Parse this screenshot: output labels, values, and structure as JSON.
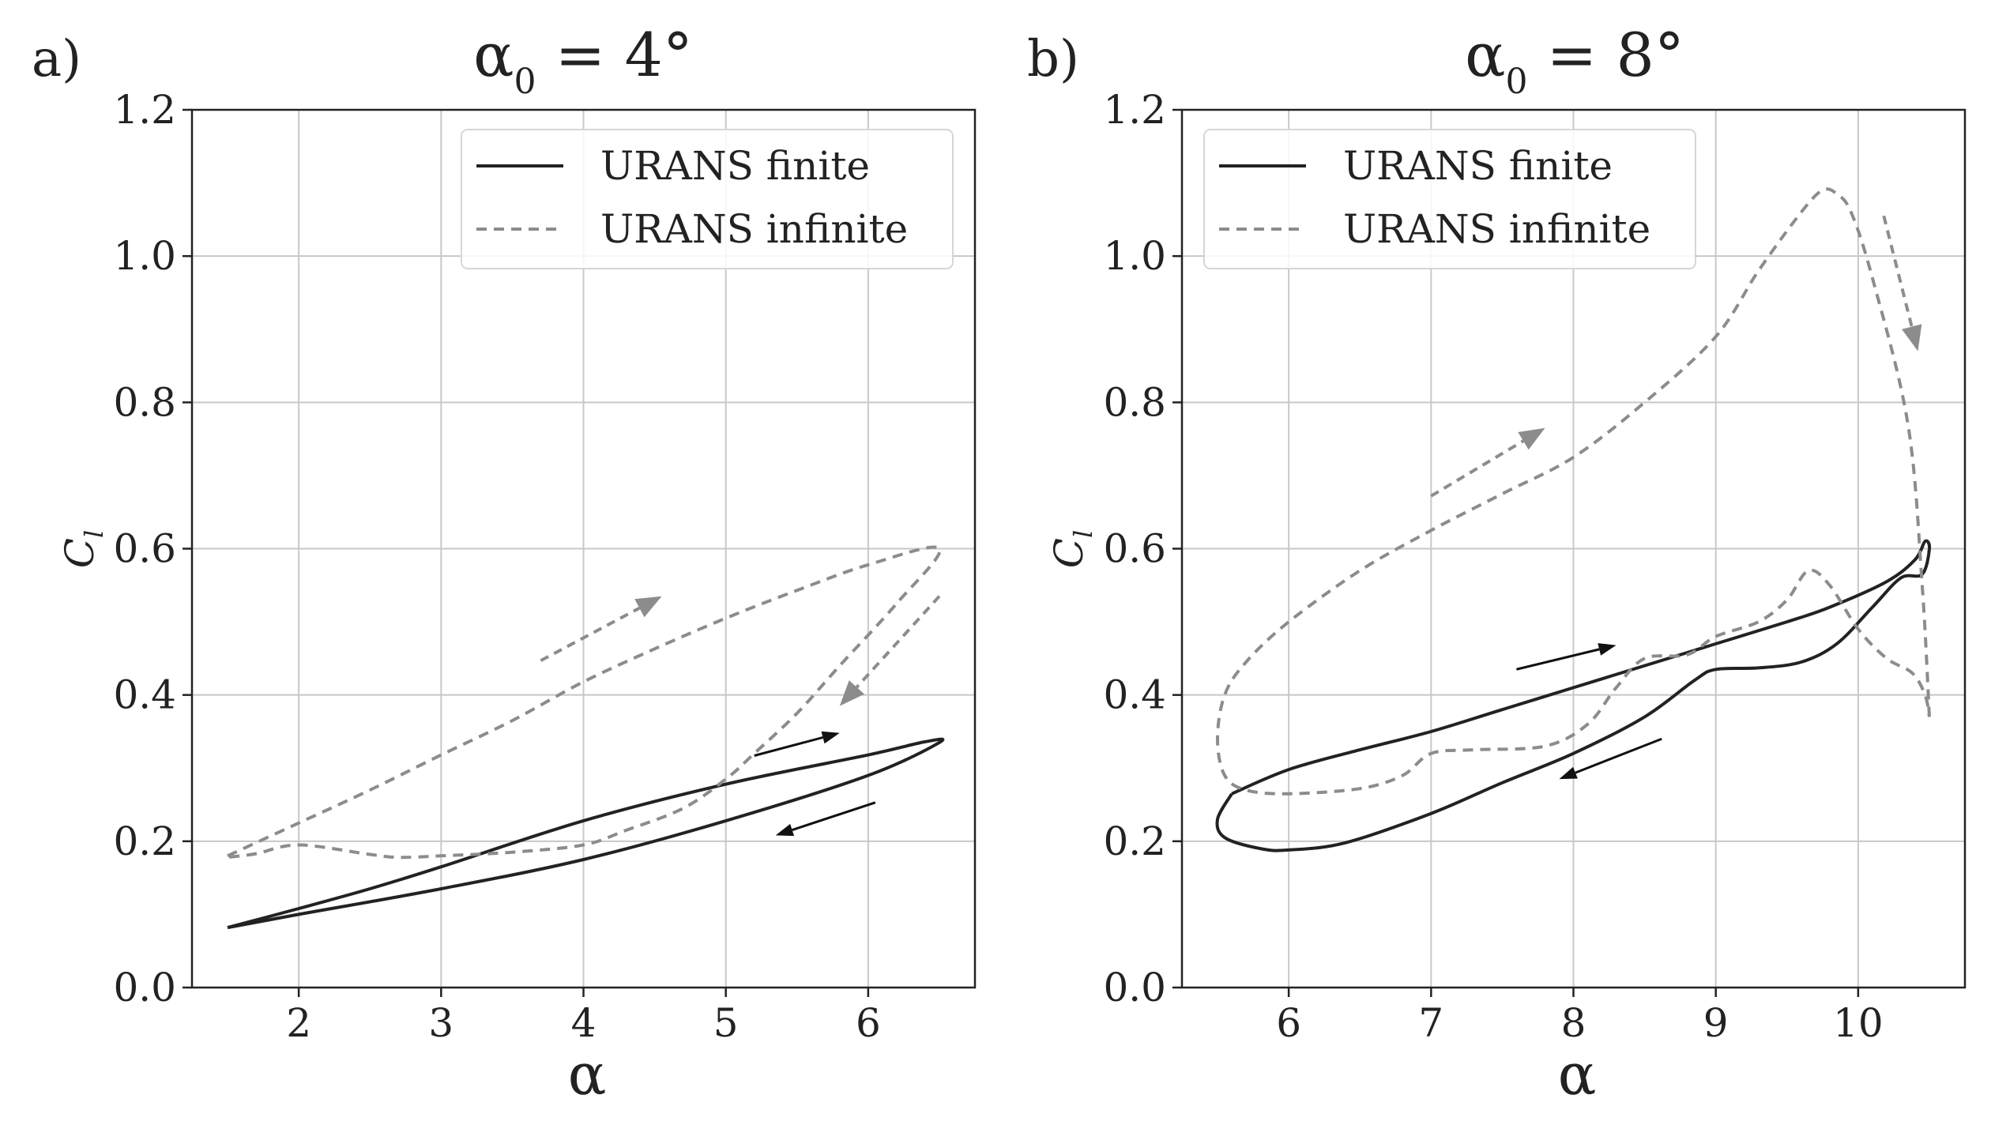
{
  "panels": [
    {
      "label": "a)",
      "title": {
        "symbol": "α",
        "subscript": "0",
        "value": " = 4°"
      },
      "xlabel": "α",
      "ylabel": {
        "main": "C",
        "sub": "l"
      }
    },
    {
      "label": "b)",
      "title": {
        "symbol": "α",
        "subscript": "0",
        "value": " = 8°"
      },
      "xlabel": "α",
      "ylabel": {
        "main": "C",
        "sub": "l"
      }
    }
  ],
  "colors": {
    "finite": "#222222",
    "infinite": "#8c8c8c",
    "grid": "#c8c8c8",
    "arrow_finite": "#111111",
    "arrow_infinite": "#8c8c8c"
  },
  "chart_data": [
    {
      "type": "line",
      "title": "α0 = 4°",
      "xlabel": "α",
      "ylabel": "Cl",
      "xlim": [
        1.25,
        6.75
      ],
      "ylim": [
        0,
        1.2
      ],
      "xticks": [
        2,
        3,
        4,
        5,
        6
      ],
      "xtick_labels": [
        "2",
        "3",
        "4",
        "5",
        "6"
      ],
      "yticks": [
        0,
        0.2,
        0.4,
        0.6,
        0.8,
        1.0,
        1.2
      ],
      "ytick_labels": [
        "0.0",
        "0.2",
        "0.4",
        "0.6",
        "0.8",
        "1.0",
        "1.2"
      ],
      "grid": true,
      "legend": "top-right",
      "series": [
        {
          "name": "URANS finite",
          "style": "solid",
          "x": [
            1.5,
            2.0,
            3.0,
            4.0,
            5.0,
            6.0,
            6.5,
            6.4,
            6.0,
            5.0,
            4.0,
            3.0,
            2.5,
            2.0,
            1.5
          ],
          "y": [
            0.082,
            0.1,
            0.135,
            0.175,
            0.228,
            0.29,
            0.335,
            0.336,
            0.318,
            0.278,
            0.228,
            0.165,
            0.135,
            0.108,
            0.082
          ]
        },
        {
          "name": "URANS infinite",
          "style": "dashed",
          "x": [
            1.5,
            2.0,
            2.5,
            3.0,
            3.5,
            4.0,
            4.5,
            5.0,
            5.5,
            6.0,
            6.5,
            6.2,
            5.8,
            5.5,
            5.2,
            5.0,
            4.7,
            4.3,
            4.0,
            3.5,
            3.0,
            2.7,
            2.5,
            2.0,
            1.7,
            1.5
          ],
          "y": [
            0.18,
            0.225,
            0.27,
            0.318,
            0.365,
            0.418,
            0.463,
            0.505,
            0.543,
            0.578,
            0.6,
            0.525,
            0.44,
            0.375,
            0.32,
            0.285,
            0.245,
            0.215,
            0.195,
            0.185,
            0.18,
            0.178,
            0.182,
            0.195,
            0.183,
            0.178
          ]
        }
      ],
      "arrows": [
        {
          "series": "URANS finite",
          "from": [
            5.2,
            0.317
          ],
          "to": [
            5.8,
            0.348
          ]
        },
        {
          "series": "URANS finite",
          "from": [
            6.05,
            0.253
          ],
          "to": [
            5.35,
            0.208
          ]
        },
        {
          "series": "URANS infinite",
          "from": [
            3.7,
            0.447
          ],
          "to": [
            4.55,
            0.535
          ]
        },
        {
          "series": "URANS infinite",
          "from": [
            6.5,
            0.535
          ],
          "to": [
            5.8,
            0.385
          ]
        }
      ]
    },
    {
      "type": "line",
      "title": "α0 = 8°",
      "xlabel": "α",
      "ylabel": "Cl",
      "xlim": [
        5.25,
        10.75
      ],
      "ylim": [
        0,
        1.2
      ],
      "xticks": [
        6,
        7,
        8,
        9,
        10
      ],
      "xtick_labels": [
        "6",
        "7",
        "8",
        "9",
        "10"
      ],
      "yticks": [
        0,
        0.2,
        0.4,
        0.6,
        0.8,
        1.0,
        1.2
      ],
      "ytick_labels": [
        "0.0",
        "0.2",
        "0.4",
        "0.6",
        "0.8",
        "1.0",
        "1.2"
      ],
      "grid": true,
      "legend": "top-left",
      "series": [
        {
          "name": "URANS finite",
          "style": "solid",
          "x": [
            5.6,
            5.5,
            5.55,
            5.8,
            6.0,
            6.4,
            7.0,
            7.5,
            8.0,
            8.5,
            8.85,
            9.0,
            9.3,
            9.6,
            9.85,
            10.1,
            10.3,
            10.45,
            10.5,
            10.47,
            10.4,
            10.2,
            9.8,
            9.5,
            9.0,
            8.5,
            8.0,
            7.5,
            7.0,
            6.5,
            6.0,
            5.6
          ],
          "y": [
            0.265,
            0.23,
            0.205,
            0.19,
            0.188,
            0.198,
            0.238,
            0.28,
            0.32,
            0.37,
            0.42,
            0.435,
            0.437,
            0.445,
            0.47,
            0.52,
            0.56,
            0.565,
            0.6,
            0.61,
            0.585,
            0.555,
            0.52,
            0.5,
            0.47,
            0.44,
            0.41,
            0.38,
            0.35,
            0.325,
            0.298,
            0.265
          ]
        },
        {
          "name": "URANS infinite",
          "style": "dashed",
          "x": [
            10.5,
            10.45,
            10.35,
            10.1,
            9.95,
            9.85,
            9.75,
            9.6,
            9.3,
            9.0,
            8.5,
            8.0,
            7.5,
            7.0,
            6.5,
            6.0,
            5.7,
            5.55,
            5.5,
            5.55,
            5.7,
            6.0,
            6.5,
            6.8,
            7.0,
            7.3,
            7.8,
            8.1,
            8.3,
            8.5,
            8.8,
            9.0,
            9.3,
            9.5,
            9.65,
            9.8,
            10.0,
            10.2,
            10.38,
            10.47,
            10.5
          ],
          "y": [
            0.37,
            0.55,
            0.77,
            0.97,
            1.06,
            1.085,
            1.09,
            1.06,
            0.98,
            0.89,
            0.8,
            0.725,
            0.675,
            0.625,
            0.57,
            0.5,
            0.445,
            0.4,
            0.34,
            0.29,
            0.27,
            0.265,
            0.272,
            0.29,
            0.32,
            0.325,
            0.33,
            0.36,
            0.41,
            0.45,
            0.455,
            0.48,
            0.5,
            0.53,
            0.57,
            0.55,
            0.49,
            0.45,
            0.43,
            0.4,
            0.37
          ]
        }
      ],
      "arrows": [
        {
          "series": "URANS finite",
          "from": [
            7.6,
            0.435
          ],
          "to": [
            8.3,
            0.468
          ]
        },
        {
          "series": "URANS finite",
          "from": [
            8.62,
            0.34
          ],
          "to": [
            7.9,
            0.285
          ]
        },
        {
          "series": "URANS infinite",
          "from": [
            7.0,
            0.672
          ],
          "to": [
            7.8,
            0.765
          ]
        },
        {
          "series": "URANS infinite",
          "from": [
            10.18,
            1.055
          ],
          "to": [
            10.42,
            0.87
          ]
        }
      ]
    }
  ]
}
